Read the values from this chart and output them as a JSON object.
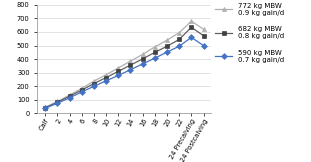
{
  "x_labels": [
    "Calf",
    "2",
    "4",
    "6",
    "8",
    "10",
    "12",
    "14",
    "16",
    "18",
    "20",
    "22",
    "24 Precalving",
    "24 Postcalving"
  ],
  "series": [
    {
      "label": "772 kg MBW\n0.9 kg gain/d",
      "color": "#b0b0b0",
      "marker": "^",
      "markercolor": "#b0b0b0",
      "values": [
        45,
        88,
        135,
        185,
        238,
        285,
        335,
        385,
        435,
        490,
        540,
        595,
        680,
        620
      ]
    },
    {
      "label": "682 kg MBW\n0.8 kg gain/d",
      "color": "#606060",
      "marker": "s",
      "markercolor": "#404040",
      "values": [
        42,
        82,
        127,
        172,
        220,
        264,
        310,
        356,
        402,
        450,
        495,
        545,
        635,
        572
      ]
    },
    {
      "label": "590 kg MBW\n0.7 kg gain/d",
      "color": "#4472c4",
      "marker": "D",
      "markercolor": "#4472c4",
      "values": [
        38,
        75,
        115,
        158,
        200,
        240,
        280,
        322,
        365,
        407,
        452,
        495,
        560,
        500
      ]
    }
  ],
  "ylim": [
    0,
    800
  ],
  "yticks": [
    0,
    100,
    200,
    300,
    400,
    500,
    600,
    700,
    800
  ],
  "bg_color": "#ffffff",
  "grid_color": "#d8d8d8",
  "legend_fontsize": 5.0,
  "tick_fontsize": 4.8,
  "linewidth": 0.9,
  "markersize": 3.0
}
